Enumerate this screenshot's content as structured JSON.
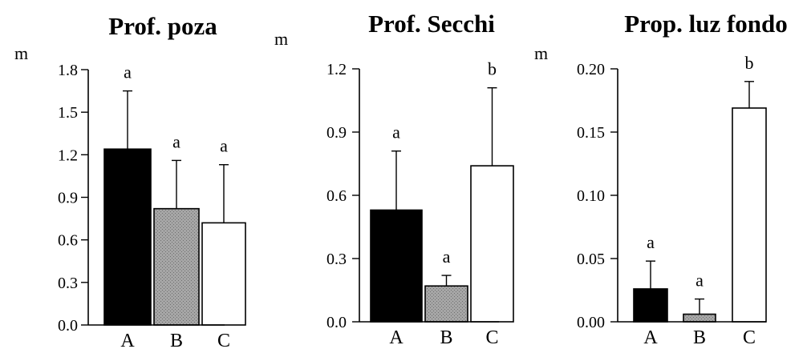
{
  "chart_data": [
    {
      "type": "bar",
      "title": "Prof. poza",
      "ylabel": "m",
      "categories": [
        "A",
        "B",
        "C"
      ],
      "values": [
        1.24,
        0.82,
        0.72
      ],
      "errors": [
        0.41,
        0.34,
        0.41
      ],
      "significance": [
        "a",
        "a",
        "a"
      ],
      "ylim": [
        0,
        1.8
      ],
      "yticks": [
        "0.0",
        "0.3",
        "0.6",
        "0.9",
        "1.2",
        "1.5",
        "1.8"
      ],
      "colors": [
        "#000000",
        "#999999",
        "#ffffff"
      ]
    },
    {
      "type": "bar",
      "title": "Prof. Secchi",
      "ylabel": "m",
      "categories": [
        "A",
        "B",
        "C"
      ],
      "values": [
        0.53,
        0.17,
        0.74
      ],
      "errors": [
        0.28,
        0.05,
        0.37
      ],
      "significance": [
        "a",
        "a",
        "b"
      ],
      "ylim": [
        0,
        1.2
      ],
      "yticks": [
        "0.0",
        "0.3",
        "0.6",
        "0.9",
        "1.2"
      ],
      "colors": [
        "#000000",
        "#999999",
        "#ffffff"
      ]
    },
    {
      "type": "bar",
      "title": "Prop. luz fondo",
      "ylabel": "m",
      "categories": [
        "A",
        "B",
        "C"
      ],
      "values": [
        0.026,
        0.006,
        0.169
      ],
      "errors": [
        0.022,
        0.012,
        0.021
      ],
      "significance": [
        "a",
        "a",
        "b"
      ],
      "ylim": [
        0,
        0.2
      ],
      "yticks": [
        "0.00",
        "0.05",
        "0.10",
        "0.15",
        "0.20"
      ],
      "colors": [
        "#000000",
        "#999999",
        "#ffffff"
      ]
    }
  ]
}
